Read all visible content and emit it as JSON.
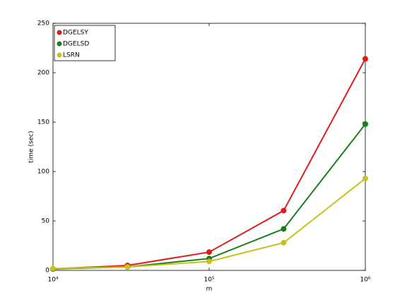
{
  "chart_data": {
    "type": "line",
    "xlabel": "m",
    "ylabel": "time (sec)",
    "x": [
      10000,
      30000,
      100000,
      300000,
      1000000
    ],
    "xscale": "log",
    "xlim": [
      10000,
      1000000
    ],
    "xticks": [
      {
        "value": 10000,
        "label": "10⁴"
      },
      {
        "value": 100000,
        "label": "10⁵"
      },
      {
        "value": 1000000,
        "label": "10⁶"
      }
    ],
    "ylim": [
      0,
      250
    ],
    "yticks": [
      0,
      50,
      100,
      150,
      200,
      250
    ],
    "legend": "upper-left",
    "series": [
      {
        "name": "DGELSY",
        "color": "#dd1c1c",
        "values": [
          1.5,
          5,
          18.5,
          60.5,
          214
        ]
      },
      {
        "name": "DGELSD",
        "color": "#1b7d1b",
        "values": [
          1.5,
          3.5,
          12,
          42,
          148
        ]
      },
      {
        "name": "LSRN",
        "color": "#c9c21c",
        "values": [
          2,
          3.5,
          9,
          28,
          93
        ]
      }
    ]
  }
}
